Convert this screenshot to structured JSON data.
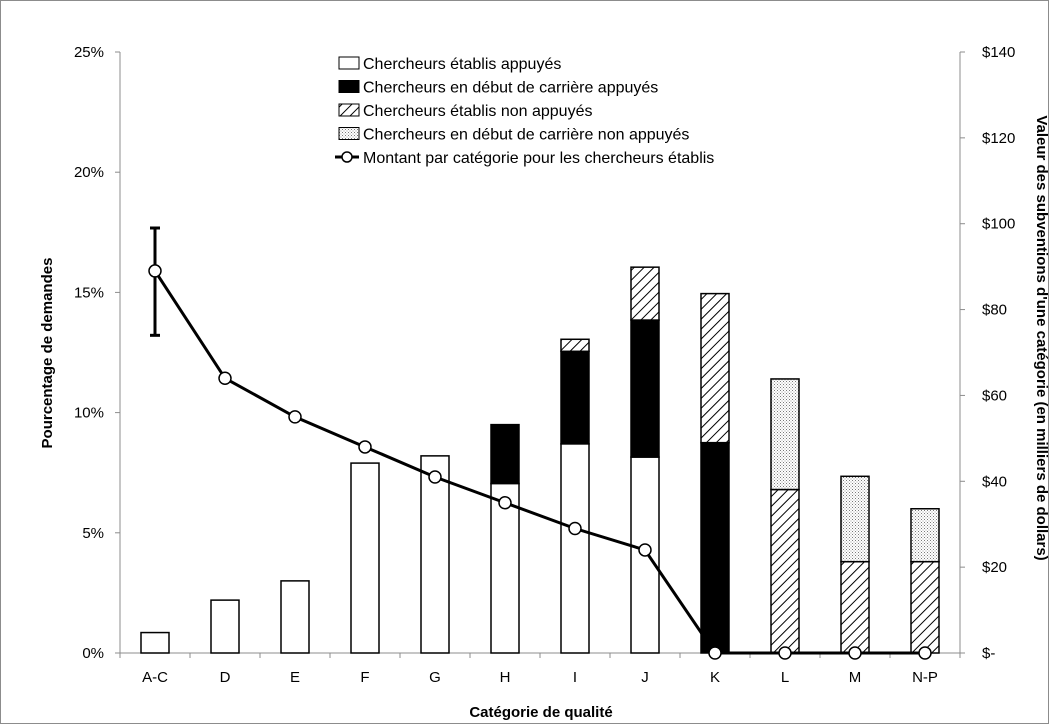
{
  "chart_data": {
    "type": "bar",
    "stacked": true,
    "xlabel": "Catégorie de qualité",
    "ylabel": "Pourcentage de demandes",
    "y2label": "Valeur des subventions d'une catégorie (en milliers de dollars)",
    "categories": [
      "A-C",
      "D",
      "E",
      "F",
      "G",
      "H",
      "I",
      "J",
      "K",
      "L",
      "M",
      "N-P"
    ],
    "ylim": [
      0,
      25
    ],
    "yticks": [
      "0%",
      "5%",
      "10%",
      "15%",
      "20%",
      "25%"
    ],
    "y2lim": [
      0,
      140
    ],
    "y2ticks": [
      "$-",
      "$20",
      "$40",
      "$60",
      "$80",
      "$100",
      "$120",
      "$140"
    ],
    "grid": false,
    "legend_position": "top-center",
    "series": [
      {
        "name": "Chercheurs établis appuyés",
        "pattern": "white",
        "values": [
          0.85,
          2.2,
          3.0,
          7.9,
          8.2,
          7.05,
          8.7,
          8.15,
          0,
          0,
          0,
          0
        ]
      },
      {
        "name": "Chercheurs en début de carrière appuyés",
        "pattern": "black",
        "values": [
          0,
          0,
          0,
          0,
          0,
          2.45,
          3.85,
          5.7,
          8.75,
          0,
          0,
          0
        ]
      },
      {
        "name": "Chercheurs établis non appuyés",
        "pattern": "hatch",
        "values": [
          0,
          0,
          0,
          0,
          0,
          0,
          0.5,
          2.2,
          6.2,
          6.8,
          3.8,
          3.8
        ]
      },
      {
        "name": "Chercheurs en début de carrière non appuyés",
        "pattern": "dots",
        "values": [
          0,
          0,
          0,
          0,
          0,
          0,
          0,
          0,
          0,
          4.6,
          3.55,
          2.2
        ]
      }
    ],
    "line": {
      "name": "Montant par catégorie pour les chercheurs établis",
      "axis": "secondary",
      "values": [
        89,
        64,
        55,
        48,
        41,
        35,
        29,
        24,
        0,
        0,
        0,
        0
      ],
      "error_bar": {
        "category": "A-C",
        "low": 74,
        "high": 99
      }
    }
  }
}
